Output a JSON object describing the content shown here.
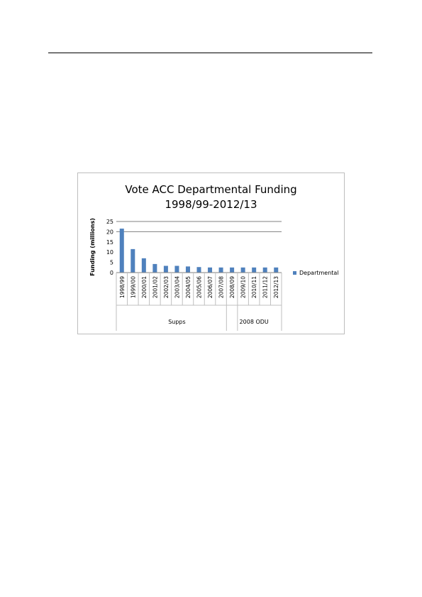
{
  "chart_data": {
    "type": "bar",
    "title_lines": [
      "Vote ACC Departmental Funding",
      "1998/99-2012/13"
    ],
    "xlabel": "",
    "ylabel": "Funding (millions)",
    "ylim": [
      0,
      25
    ],
    "yticks": [
      0,
      5,
      10,
      15,
      20,
      25
    ],
    "grid": "horizontal at 20 and 25",
    "legend_position": "right",
    "categories": [
      "1998/99",
      "1999/00",
      "2000/01",
      "2001/02",
      "2002/03",
      "2003/04",
      "2004/05",
      "2005/06",
      "2006/07",
      "2007/08",
      "2008/09",
      "2009/10",
      "2010/11",
      "2011/12",
      "2012/13"
    ],
    "groups": [
      {
        "label": "Supps",
        "from": 0,
        "to": 10
      },
      {
        "label": "2008 ODU",
        "from": 10,
        "to": 14
      }
    ],
    "series": [
      {
        "name": "Departmental",
        "color": "#4f81bd",
        "values": [
          21.5,
          11.5,
          7.0,
          4.2,
          3.3,
          3.3,
          3.0,
          2.7,
          2.5,
          2.5,
          2.5,
          2.5,
          2.5,
          2.5,
          2.5
        ]
      }
    ]
  }
}
